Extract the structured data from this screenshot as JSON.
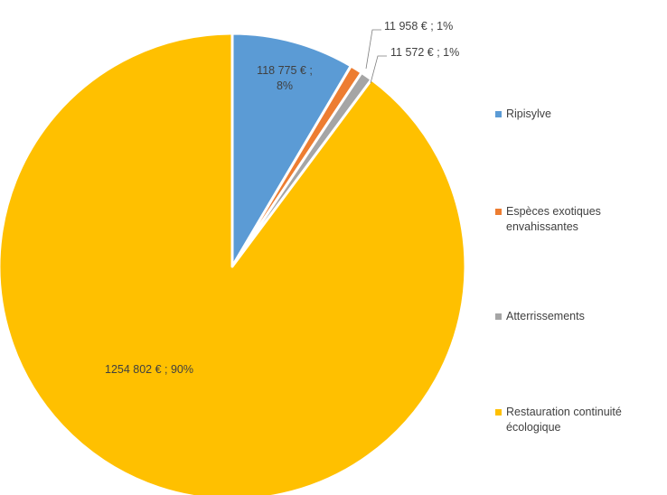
{
  "chart_data": {
    "type": "pie",
    "title": "",
    "unit": "€",
    "series": [
      {
        "name": "Ripisylve",
        "value": 118775,
        "percent": 8,
        "label": "118 775 € ; 8%",
        "color": "#5B9BD5"
      },
      {
        "name": "Espèces exotiques envahissantes",
        "value": 11958,
        "percent": 1,
        "label": "11 958 € ; 1%",
        "color": "#ED7D31"
      },
      {
        "name": "Atterrissements",
        "value": 11572,
        "percent": 1,
        "label": "11 572 € ; 1%",
        "color": "#A5A5A5"
      },
      {
        "name": "Restauration continuité écologique",
        "value": 1254802,
        "percent": 90,
        "label": "1254 802 € ; 90%",
        "color": "#FFC000"
      }
    ],
    "legend": {
      "position": "right",
      "entries": [
        {
          "label": "Ripisylve",
          "color": "#5B9BD5"
        },
        {
          "label": "Espèces exotiques envahissantes",
          "color": "#ED7D31"
        },
        {
          "label": "Atterrissements",
          "color": "#A5A5A5"
        },
        {
          "label": "Restauration continuité écologique",
          "color": "#FFC000"
        }
      ]
    }
  }
}
